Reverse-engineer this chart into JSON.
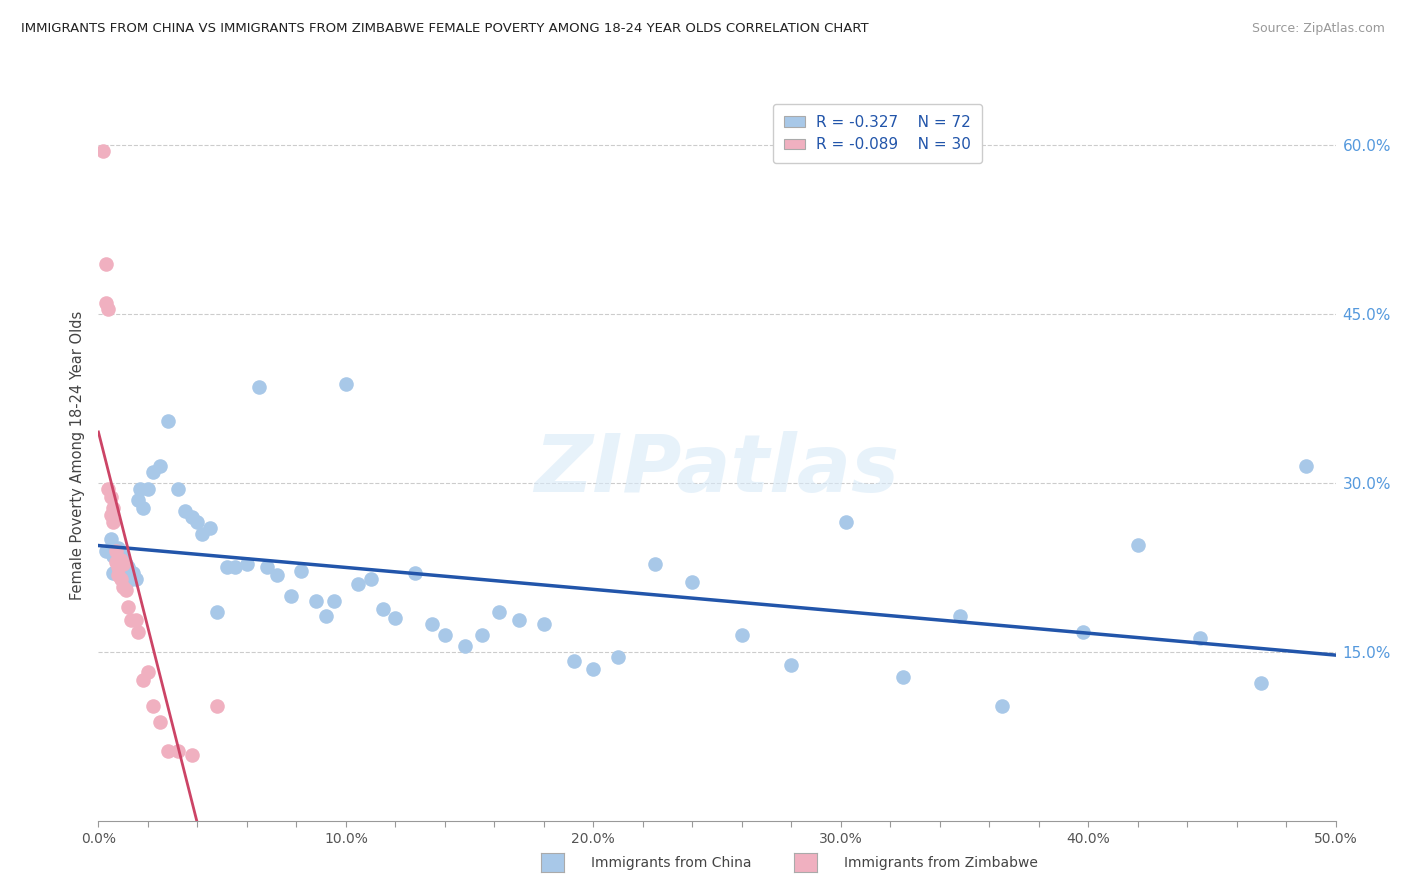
{
  "title": "IMMIGRANTS FROM CHINA VS IMMIGRANTS FROM ZIMBABWE FEMALE POVERTY AMONG 18-24 YEAR OLDS CORRELATION CHART",
  "source": "Source: ZipAtlas.com",
  "ylabel": "Female Poverty Among 18-24 Year Olds",
  "xlim": [
    0.0,
    0.5
  ],
  "ylim": [
    0.0,
    0.65
  ],
  "xtick_labels": [
    "0.0%",
    "",
    "",
    "",
    "",
    "10.0%",
    "",
    "",
    "",
    "",
    "20.0%",
    "",
    "",
    "",
    "",
    "30.0%",
    "",
    "",
    "",
    "",
    "40.0%",
    "",
    "",
    "",
    "",
    "50.0%"
  ],
  "xtick_vals": [
    0.0,
    0.02,
    0.04,
    0.06,
    0.08,
    0.1,
    0.12,
    0.14,
    0.16,
    0.18,
    0.2,
    0.22,
    0.24,
    0.26,
    0.28,
    0.3,
    0.32,
    0.34,
    0.36,
    0.38,
    0.4,
    0.42,
    0.44,
    0.46,
    0.48,
    0.5
  ],
  "ytick_vals": [
    0.15,
    0.3,
    0.45,
    0.6
  ],
  "ytick_labels": [
    "15.0%",
    "30.0%",
    "45.0%",
    "60.0%"
  ],
  "china_color": "#a8c8e8",
  "china_line_color": "#2255aa",
  "zimbabwe_color": "#f0b0c0",
  "zimbabwe_line_color": "#cc4466",
  "china_R": -0.327,
  "china_N": 72,
  "zimbabwe_R": -0.089,
  "zimbabwe_N": 30,
  "watermark": "ZIPatlas",
  "china_x": [
    0.003,
    0.005,
    0.006,
    0.006,
    0.007,
    0.007,
    0.008,
    0.008,
    0.009,
    0.009,
    0.01,
    0.01,
    0.011,
    0.011,
    0.012,
    0.013,
    0.014,
    0.015,
    0.016,
    0.017,
    0.018,
    0.02,
    0.022,
    0.025,
    0.028,
    0.032,
    0.035,
    0.038,
    0.04,
    0.042,
    0.045,
    0.048,
    0.052,
    0.055,
    0.06,
    0.065,
    0.068,
    0.072,
    0.078,
    0.082,
    0.088,
    0.092,
    0.095,
    0.1,
    0.105,
    0.11,
    0.115,
    0.12,
    0.128,
    0.135,
    0.14,
    0.148,
    0.155,
    0.162,
    0.17,
    0.18,
    0.192,
    0.2,
    0.21,
    0.225,
    0.24,
    0.26,
    0.28,
    0.302,
    0.325,
    0.348,
    0.365,
    0.398,
    0.42,
    0.445,
    0.47,
    0.488
  ],
  "china_y": [
    0.24,
    0.25,
    0.235,
    0.22,
    0.238,
    0.222,
    0.242,
    0.228,
    0.232,
    0.218,
    0.235,
    0.215,
    0.228,
    0.21,
    0.225,
    0.215,
    0.22,
    0.215,
    0.285,
    0.295,
    0.278,
    0.295,
    0.31,
    0.315,
    0.355,
    0.295,
    0.275,
    0.27,
    0.265,
    0.255,
    0.26,
    0.185,
    0.225,
    0.225,
    0.228,
    0.385,
    0.225,
    0.218,
    0.2,
    0.222,
    0.195,
    0.182,
    0.195,
    0.388,
    0.21,
    0.215,
    0.188,
    0.18,
    0.22,
    0.175,
    0.165,
    0.155,
    0.165,
    0.185,
    0.178,
    0.175,
    0.142,
    0.135,
    0.145,
    0.228,
    0.212,
    0.165,
    0.138,
    0.265,
    0.128,
    0.182,
    0.102,
    0.168,
    0.245,
    0.162,
    0.122,
    0.315
  ],
  "zimbabwe_x": [
    0.002,
    0.003,
    0.003,
    0.004,
    0.004,
    0.005,
    0.005,
    0.006,
    0.006,
    0.007,
    0.007,
    0.008,
    0.008,
    0.009,
    0.009,
    0.01,
    0.01,
    0.011,
    0.012,
    0.013,
    0.015,
    0.016,
    0.018,
    0.02,
    0.022,
    0.025,
    0.028,
    0.032,
    0.038,
    0.048
  ],
  "zimbabwe_y": [
    0.595,
    0.495,
    0.46,
    0.455,
    0.295,
    0.288,
    0.272,
    0.278,
    0.265,
    0.24,
    0.23,
    0.225,
    0.218,
    0.232,
    0.215,
    0.228,
    0.208,
    0.205,
    0.19,
    0.178,
    0.178,
    0.168,
    0.125,
    0.132,
    0.102,
    0.088,
    0.062,
    0.062,
    0.058,
    0.102
  ]
}
